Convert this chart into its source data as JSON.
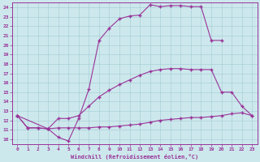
{
  "background_color": "#cde8ec",
  "grid_color": "#a8d0d8",
  "line_color": "#993399",
  "xlabel": "Windchill (Refroidissement éolien,°C)",
  "xlim": [
    -0.5,
    23.5
  ],
  "ylim": [
    9.5,
    24.5
  ],
  "yticks": [
    10,
    11,
    12,
    13,
    14,
    15,
    16,
    17,
    18,
    19,
    20,
    21,
    22,
    23,
    24
  ],
  "xticks": [
    0,
    1,
    2,
    3,
    4,
    5,
    6,
    7,
    8,
    9,
    10,
    11,
    12,
    13,
    14,
    15,
    16,
    17,
    18,
    19,
    20,
    21,
    22,
    23
  ],
  "line1_x": [
    0,
    1,
    2,
    3,
    4,
    5,
    6,
    7,
    8,
    9,
    10,
    11,
    12,
    13,
    14,
    15,
    16,
    17,
    18,
    19,
    20
  ],
  "line1_y": [
    12.5,
    11.2,
    11.2,
    11.1,
    10.2,
    9.8,
    12.2,
    15.3,
    20.5,
    21.8,
    22.8,
    23.1,
    23.2,
    24.3,
    24.1,
    24.2,
    24.2,
    24.1,
    24.1,
    20.5,
    20.5
  ],
  "line2_x": [
    0,
    3,
    4,
    5,
    6,
    7,
    8,
    9,
    10,
    11,
    12,
    13,
    14,
    15,
    16,
    17,
    18,
    19,
    20,
    21,
    22,
    23
  ],
  "line2_y": [
    12.5,
    11.1,
    12.2,
    12.2,
    12.5,
    13.5,
    14.5,
    15.2,
    15.8,
    16.3,
    16.8,
    17.2,
    17.4,
    17.5,
    17.5,
    17.4,
    17.4,
    17.4,
    15.0,
    15.0,
    13.5,
    12.5
  ],
  "line3_x": [
    0,
    1,
    2,
    3,
    4,
    5,
    6,
    7,
    8,
    9,
    10,
    11,
    12,
    13,
    14,
    15,
    16,
    17,
    18,
    19,
    20,
    21,
    22,
    23
  ],
  "line3_y": [
    12.5,
    11.2,
    11.2,
    11.1,
    11.2,
    11.2,
    11.2,
    11.2,
    11.3,
    11.3,
    11.4,
    11.5,
    11.6,
    11.8,
    12.0,
    12.1,
    12.2,
    12.3,
    12.3,
    12.4,
    12.5,
    12.7,
    12.8,
    12.5
  ]
}
